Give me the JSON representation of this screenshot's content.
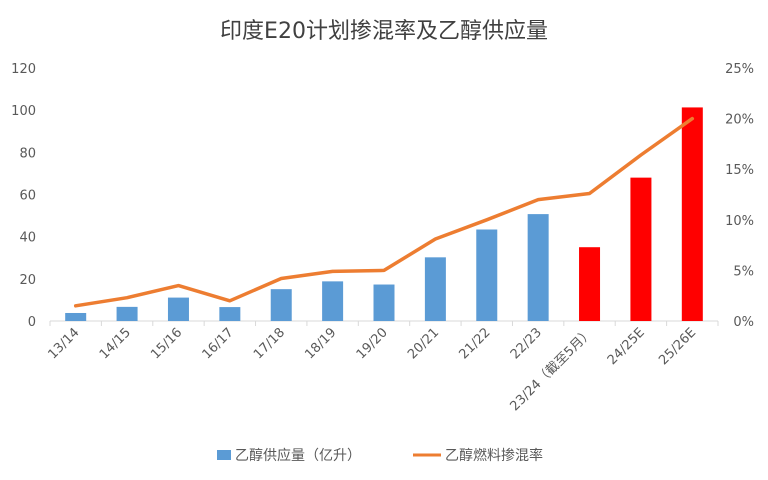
{
  "chart_data": {
    "type": "bar",
    "title": "印度E20计划掺混率及乙醇供应量",
    "categories": [
      "13/14",
      "14/15",
      "15/16",
      "16/17",
      "17/18",
      "18/19",
      "19/20",
      "20/21",
      "21/22",
      "22/23",
      "23/24（截至5月）",
      "24/25E",
      "25/26E"
    ],
    "y_left": {
      "min": 0,
      "max": 120,
      "ticks": [
        "0",
        "20",
        "40",
        "60",
        "80",
        "100",
        "120"
      ]
    },
    "y_right": {
      "min": 0,
      "max": 25,
      "ticks": [
        "0%",
        "5%",
        "10%",
        "15%",
        "20%",
        "25%"
      ]
    },
    "grid": false,
    "legend_position": "bottom",
    "series": [
      {
        "name": "乙醇供应量（亿升）",
        "type": "bar",
        "axis": "left",
        "values": [
          3.8,
          6.7,
          11.1,
          6.6,
          15.1,
          18.8,
          17.3,
          30.2,
          43.4,
          50.7,
          35.0,
          68.0,
          101.3
        ],
        "colors": [
          "#5b9bd5",
          "#5b9bd5",
          "#5b9bd5",
          "#5b9bd5",
          "#5b9bd5",
          "#5b9bd5",
          "#5b9bd5",
          "#5b9bd5",
          "#5b9bd5",
          "#5b9bd5",
          "#ff0000",
          "#ff0000",
          "#ff0000"
        ]
      },
      {
        "name": "乙醇燃料掺混率",
        "type": "line",
        "axis": "right",
        "values": [
          1.5,
          2.3,
          3.5,
          2.0,
          4.2,
          4.9,
          5.0,
          8.1,
          10.0,
          12.0,
          12.6,
          16.4,
          20.0
        ],
        "color": "#ed7d31"
      }
    ]
  }
}
